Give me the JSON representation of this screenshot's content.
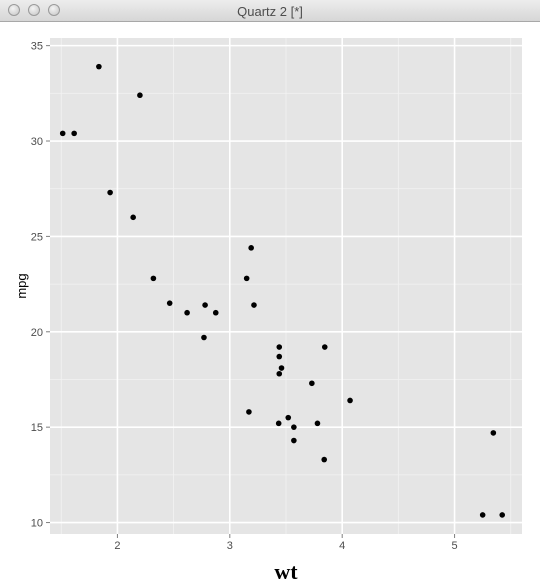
{
  "window": {
    "title": "Quartz 2 [*]"
  },
  "colors": {
    "panel_background": "#e5e5e5",
    "grid_major": "#ffffff",
    "grid_minor": "#f2f2f2",
    "point": "#000000",
    "tick_label": "#4d4d4d"
  },
  "chart_data": {
    "type": "scatter",
    "title": "",
    "xlabel": "wt",
    "ylabel": "mpg",
    "xlim": [
      1.4,
      5.6
    ],
    "ylim": [
      9.4,
      35.4
    ],
    "xticks": [
      2,
      3,
      4,
      5
    ],
    "yticks": [
      10,
      15,
      20,
      25,
      30,
      35
    ],
    "grid": true,
    "legend": "none",
    "points": [
      {
        "x": 1.513,
        "y": 30.4
      },
      {
        "x": 1.615,
        "y": 30.4
      },
      {
        "x": 1.835,
        "y": 33.9
      },
      {
        "x": 1.935,
        "y": 27.3
      },
      {
        "x": 2.14,
        "y": 26.0
      },
      {
        "x": 2.2,
        "y": 32.4
      },
      {
        "x": 2.32,
        "y": 22.8
      },
      {
        "x": 2.465,
        "y": 21.5
      },
      {
        "x": 2.62,
        "y": 21.0
      },
      {
        "x": 2.77,
        "y": 19.7
      },
      {
        "x": 2.78,
        "y": 21.4
      },
      {
        "x": 2.875,
        "y": 21.0
      },
      {
        "x": 3.15,
        "y": 22.8
      },
      {
        "x": 3.17,
        "y": 15.8
      },
      {
        "x": 3.19,
        "y": 24.4
      },
      {
        "x": 3.215,
        "y": 21.4
      },
      {
        "x": 3.435,
        "y": 15.2
      },
      {
        "x": 3.44,
        "y": 18.7
      },
      {
        "x": 3.44,
        "y": 19.2
      },
      {
        "x": 3.44,
        "y": 17.8
      },
      {
        "x": 3.46,
        "y": 18.1
      },
      {
        "x": 3.52,
        "y": 15.5
      },
      {
        "x": 3.57,
        "y": 14.3
      },
      {
        "x": 3.57,
        "y": 15.0
      },
      {
        "x": 3.73,
        "y": 17.3
      },
      {
        "x": 3.78,
        "y": 15.2
      },
      {
        "x": 3.84,
        "y": 13.3
      },
      {
        "x": 3.845,
        "y": 19.2
      },
      {
        "x": 4.07,
        "y": 16.4
      },
      {
        "x": 5.25,
        "y": 10.4
      },
      {
        "x": 5.345,
        "y": 14.7
      },
      {
        "x": 5.424,
        "y": 10.4
      }
    ]
  }
}
